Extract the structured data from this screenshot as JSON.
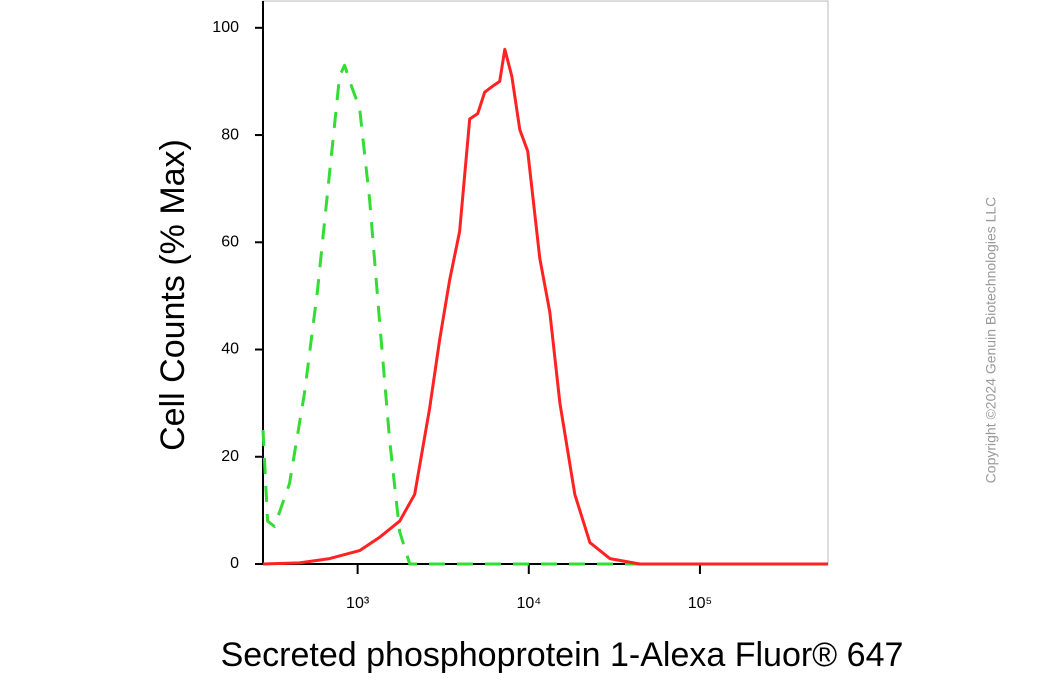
{
  "chart_data": {
    "type": "line",
    "x_label": "Secreted phosphoprotein 1-Alexa Fluor® 647",
    "y_label": "Cell Counts (% Max)",
    "copyright": "Copyright ©2024 Genuin Biotechnologies LLC",
    "xscale": "log",
    "xlim": [
      280,
      560000
    ],
    "ylim": [
      0,
      105
    ],
    "xticks": [
      {
        "value": 1000,
        "label": "10³"
      },
      {
        "value": 10000,
        "label": "10⁴"
      },
      {
        "value": 100000,
        "label": "10⁵"
      }
    ],
    "yticks": [
      0,
      20,
      40,
      60,
      80,
      100
    ],
    "grid": false,
    "series": [
      {
        "color": "#33dd33",
        "dash": true,
        "x": [
          280,
          298,
          327,
          400,
          490,
          583,
          686,
          785,
          839,
          923,
          1027,
          1175,
          1346,
          1539,
          1762,
          2014,
          560000
        ],
        "values": [
          25,
          8,
          7,
          15,
          32,
          51,
          73,
          91,
          93,
          89,
          85,
          68,
          45,
          23,
          6,
          0,
          0
        ]
      },
      {
        "color": "#ff2222",
        "dash": false,
        "x": [
          280,
          458,
          686,
          1027,
          1346,
          1762,
          2154,
          2635,
          3020,
          3451,
          3945,
          4518,
          5030,
          5530,
          6080,
          6765,
          7240,
          7960,
          8860,
          9860,
          11600,
          13270,
          15200,
          18570,
          22750,
          29800,
          44600,
          560000
        ],
        "values": [
          0,
          0.2,
          1,
          2.5,
          5,
          8,
          13,
          29,
          42,
          53,
          62,
          83,
          84,
          88,
          89,
          90,
          96,
          91,
          81,
          77,
          57,
          47,
          30,
          13,
          4,
          1,
          0,
          0
        ]
      }
    ]
  }
}
